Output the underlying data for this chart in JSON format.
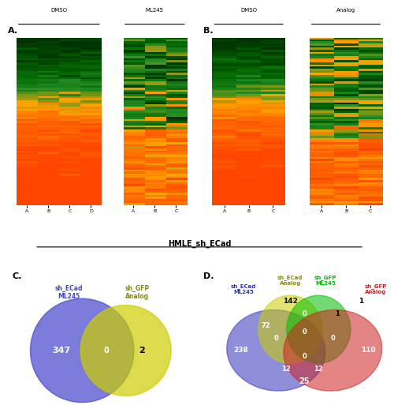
{
  "title_A": "A.",
  "title_B": "B.",
  "title_C": "C.",
  "title_D": "D.",
  "xlabel_A_dmso": "DMSO",
  "xlabel_A_ml245": "ML245",
  "xlabel_B_dmso": "DMSO",
  "xlabel_B_analog": "Analog",
  "xlabel_subtitle": "HMLE_sh_ECad",
  "col_labels_A_dmso": [
    "A",
    "B",
    "C",
    "D"
  ],
  "col_labels_A_ml245": [
    "A",
    "B",
    "C"
  ],
  "col_labels_B_dmso": [
    "A",
    "B",
    "C"
  ],
  "col_labels_B_analog": [
    "A",
    "B",
    "C"
  ],
  "heatmap_colors_top": "#006400",
  "heatmap_colors_mid": "#FFA500",
  "heatmap_colors_bot": "#FF6600",
  "n_rows": 80,
  "venn2_circle1_color": "#4444CC",
  "venn2_circle2_color": "#CCCC00",
  "venn2_label1": "sh_ECad\nML245",
  "venn2_label2": "sh_GFP\nAnalog",
  "venn2_val_left": "347",
  "venn2_val_overlap": "0",
  "venn2_val_right": "2",
  "venn4_label1": "sh_ECad\nML245",
  "venn4_label2": "sh_ECad\nAnalog",
  "venn4_label3": "sh_GFP\nML245",
  "venn4_label4": "sh_GFP\nAnalog",
  "venn4_color1": "#3333BB",
  "venn4_color2": "#CCCC00",
  "venn4_color3": "#00BB00",
  "venn4_color4": "#CC2222",
  "venn4_numbers": {
    "only1": "238",
    "only2": "142",
    "only3": "1",
    "only4": "110",
    "1_2": "72",
    "1_3": "0",
    "1_4": "0",
    "2_3": "0",
    "2_4": "0",
    "3_4": "1",
    "1_2_3": "0",
    "1_2_4": "0",
    "1_3_4": "0",
    "2_3_4": "12",
    "1_2_3_4": "25",
    "1_4_extra": "12",
    "center_extra": "0"
  },
  "bg_color": "#ffffff",
  "label_color_A": "#4444CC",
  "label_color_B": "#CCCC22",
  "label_color_C": "#22CC22",
  "label_color_D": "#CC2222"
}
